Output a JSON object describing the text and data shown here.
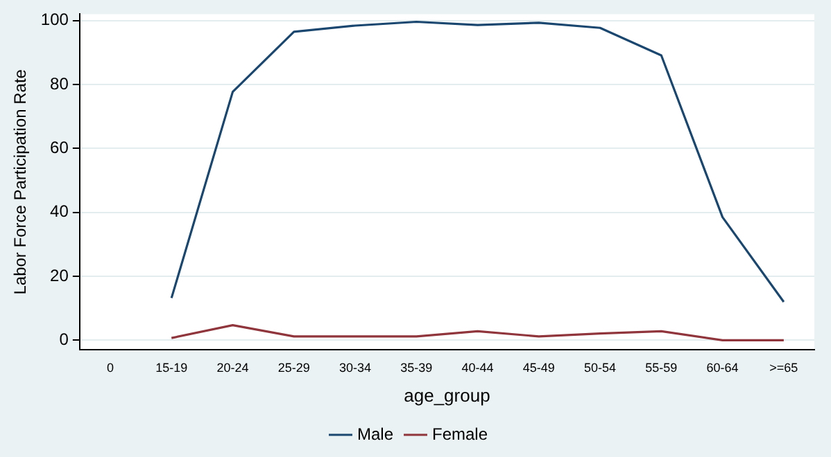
{
  "chart_data": {
    "type": "line",
    "xlabel": "age_group",
    "ylabel": "Labor Force Participation Rate",
    "categories": [
      "0",
      "15-19",
      "20-24",
      "25-29",
      "30-34",
      "35-39",
      "40-44",
      "45-49",
      "50-54",
      "55-59",
      "60-64",
      ">=65"
    ],
    "series": [
      {
        "name": "Male",
        "color": "#1a476f",
        "values": [
          null,
          13.2,
          77.7,
          96.5,
          98.4,
          99.6,
          98.6,
          99.3,
          97.7,
          89.1,
          38.5,
          12
        ]
      },
      {
        "name": "Female",
        "color": "#90353b",
        "values": [
          null,
          0.7,
          4.7,
          1.2,
          1.2,
          1.2,
          2.8,
          1.2,
          2.1,
          2.8,
          0,
          0
        ]
      }
    ],
    "ylim": [
      -3,
      102
    ],
    "yticks": [
      0,
      20,
      40,
      60,
      80,
      100
    ],
    "grid": "y",
    "legend": "bottom",
    "marker": "none",
    "line_style": "solid"
  }
}
